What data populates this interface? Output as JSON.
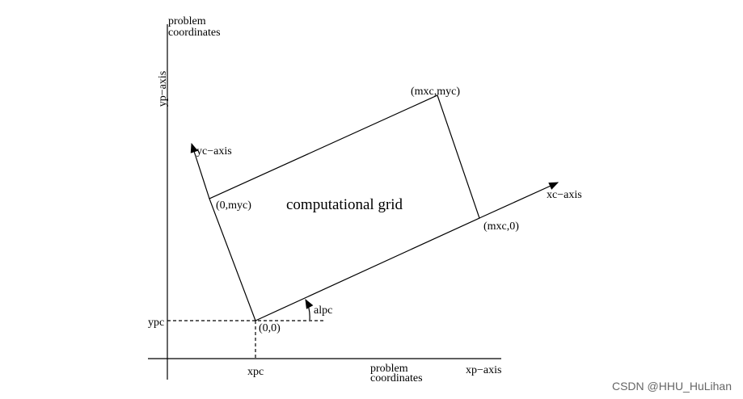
{
  "diagram": {
    "problem_coords_top": [
      "problem",
      "coordinates"
    ],
    "yp_axis": "yp−axis",
    "yc_axis": "yc−axis",
    "corner_mxc_myc": "(mxc,myc)",
    "corner_0_myc": "(0,myc)",
    "grid_label": "computational grid",
    "xc_axis": "xc−axis",
    "corner_mxc_0": "(mxc,0)",
    "angle": "alpc",
    "ypc": "ypc",
    "origin": "(0,0)",
    "xpc": "xpc",
    "problem_coords_bottom": [
      "problem",
      "coordinates"
    ],
    "xp_axis": "xp−axis"
  },
  "watermark": "CSDN @HHU_HuLihan"
}
